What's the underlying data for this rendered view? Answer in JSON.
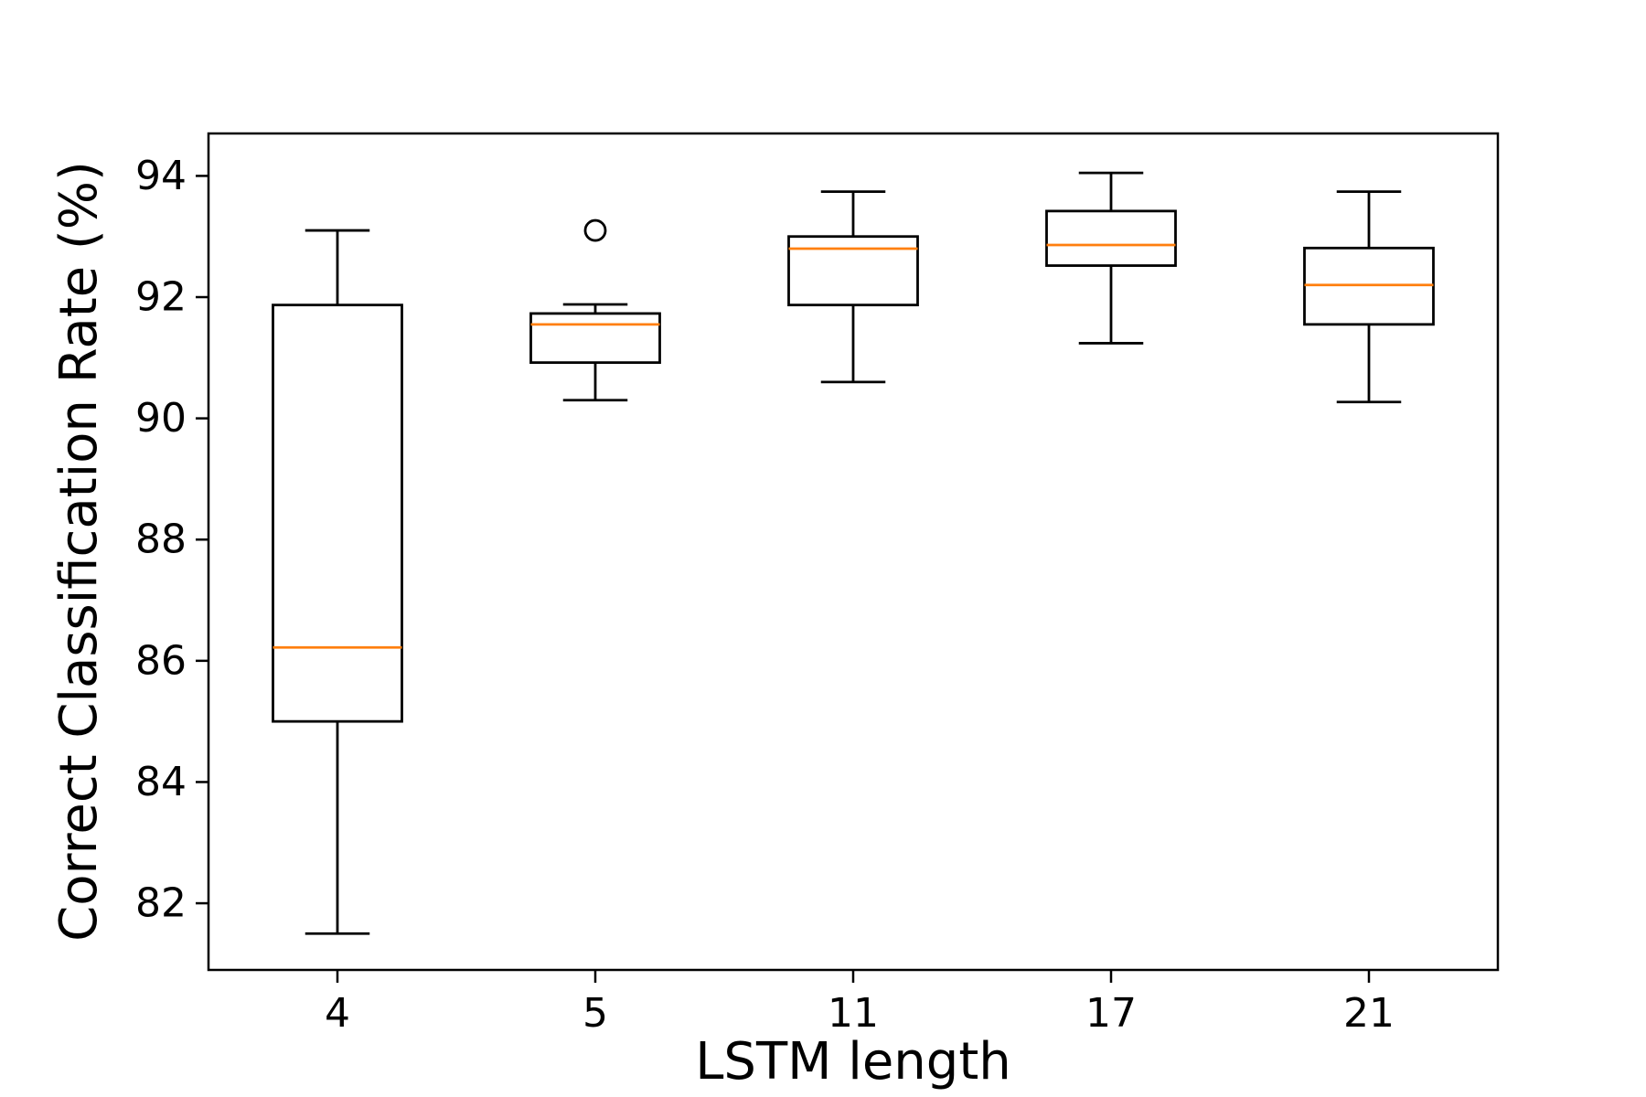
{
  "chart_data": {
    "type": "box",
    "xlabel": "LSTM length",
    "ylabel": "Correct Classification Rate (%)",
    "categories": [
      "4",
      "5",
      "11",
      "17",
      "21"
    ],
    "ylim": [
      80.9,
      94.7
    ],
    "yticks": [
      82,
      84,
      86,
      88,
      90,
      92,
      94
    ],
    "grid": false,
    "boxes": [
      {
        "category": "4",
        "whisker_low": 81.5,
        "q1": 85.0,
        "median": 86.22,
        "q3": 91.87,
        "whisker_high": 93.1,
        "outliers": []
      },
      {
        "category": "5",
        "whisker_low": 90.3,
        "q1": 90.92,
        "median": 91.55,
        "q3": 91.73,
        "whisker_high": 91.88,
        "outliers": [
          93.1
        ]
      },
      {
        "category": "11",
        "whisker_low": 90.6,
        "q1": 91.87,
        "median": 92.8,
        "q3": 93.0,
        "whisker_high": 93.74,
        "outliers": []
      },
      {
        "category": "17",
        "whisker_low": 91.24,
        "q1": 92.52,
        "median": 92.86,
        "q3": 93.42,
        "whisker_high": 94.05,
        "outliers": []
      },
      {
        "category": "21",
        "whisker_low": 90.27,
        "q1": 91.55,
        "median": 92.2,
        "q3": 92.81,
        "whisker_high": 93.74,
        "outliers": []
      }
    ],
    "colors": {
      "box": "#000000",
      "median": "#ff7f0e",
      "outlier": "#000000"
    }
  }
}
